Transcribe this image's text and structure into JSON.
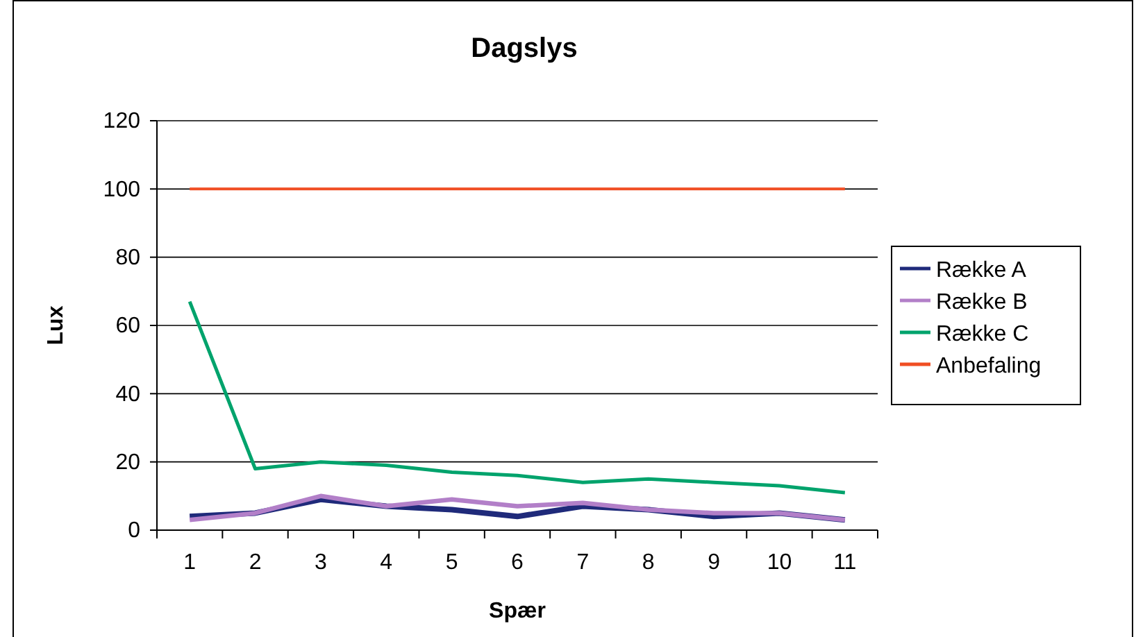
{
  "chart_data": {
    "type": "line",
    "title": "Dagslys",
    "xlabel": "Spær",
    "ylabel": "Lux",
    "categories": [
      "1",
      "2",
      "3",
      "4",
      "5",
      "6",
      "7",
      "8",
      "9",
      "10",
      "11"
    ],
    "series": [
      {
        "name": "Række A",
        "color": "#1f2a7a",
        "values": [
          4,
          5,
          9,
          7,
          6,
          4,
          7,
          6,
          4,
          5,
          3
        ]
      },
      {
        "name": "Række B",
        "color": "#b27fc8",
        "values": [
          3,
          5,
          10,
          7,
          9,
          7,
          8,
          6,
          5,
          5,
          3
        ]
      },
      {
        "name": "Række C",
        "color": "#00a36c",
        "values": [
          67,
          18,
          20,
          19,
          17,
          16,
          14,
          15,
          14,
          13,
          11
        ]
      },
      {
        "name": "Anbefaling",
        "color": "#f04e23",
        "values": [
          100,
          100,
          100,
          100,
          100,
          100,
          100,
          100,
          100,
          100,
          100
        ]
      }
    ],
    "ylim": [
      0,
      120
    ],
    "yticks": [
      0,
      20,
      40,
      60,
      80,
      100,
      120
    ],
    "grid": "y",
    "legend": "right",
    "marker": "none",
    "line_style": "solid"
  }
}
